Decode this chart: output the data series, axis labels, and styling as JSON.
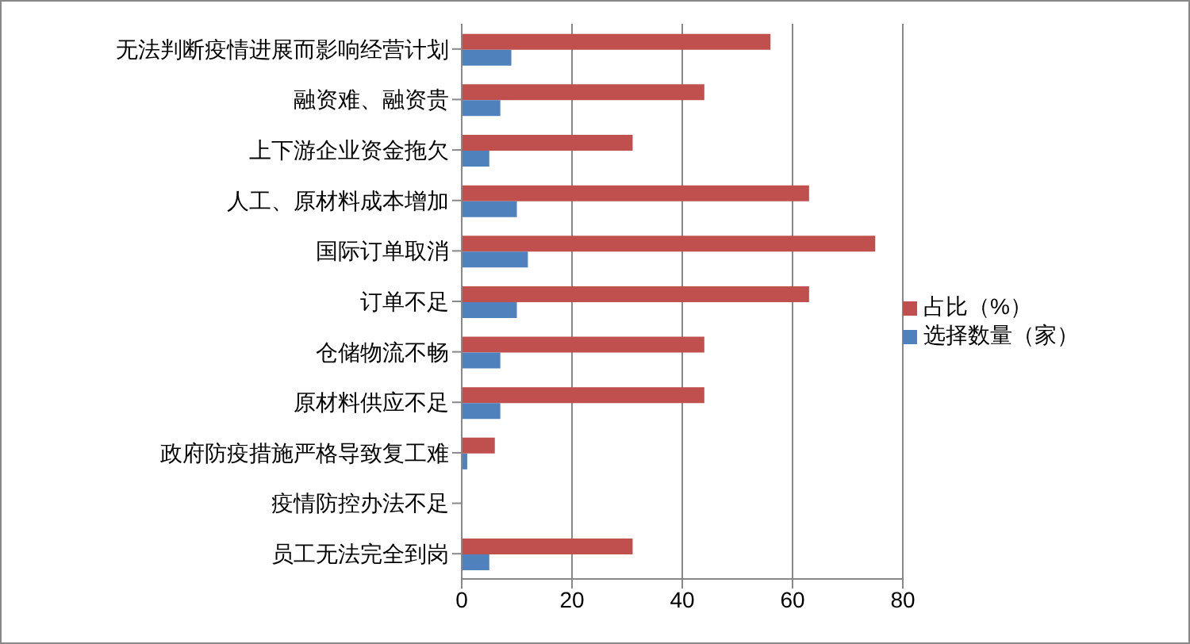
{
  "chart_data": {
    "type": "bar",
    "orientation": "horizontal",
    "categories": [
      "无法判断疫情进展而影响经营计划",
      "融资难、融资贵",
      "上下游企业资金拖欠",
      "人工、原材料成本增加",
      "国际订单取消",
      "订单不足",
      "仓储物流不畅",
      "原材料供应不足",
      "政府防疫措施严格导致复工难",
      "疫情防控办法不足",
      "员工无法完全到岗"
    ],
    "series": [
      {
        "name": "占比（%）",
        "color": "#c0504d",
        "values": [
          56,
          44,
          31,
          63,
          75,
          63,
          44,
          44,
          6,
          0,
          31
        ]
      },
      {
        "name": "选择数量（家）",
        "color": "#4f81bd",
        "values": [
          9,
          7,
          5,
          10,
          12,
          10,
          7,
          7,
          1,
          0,
          5
        ]
      }
    ],
    "xlim": [
      0,
      80
    ],
    "xticks": [
      0,
      20,
      40,
      60,
      80
    ],
    "grid": "x",
    "legend": "right"
  }
}
